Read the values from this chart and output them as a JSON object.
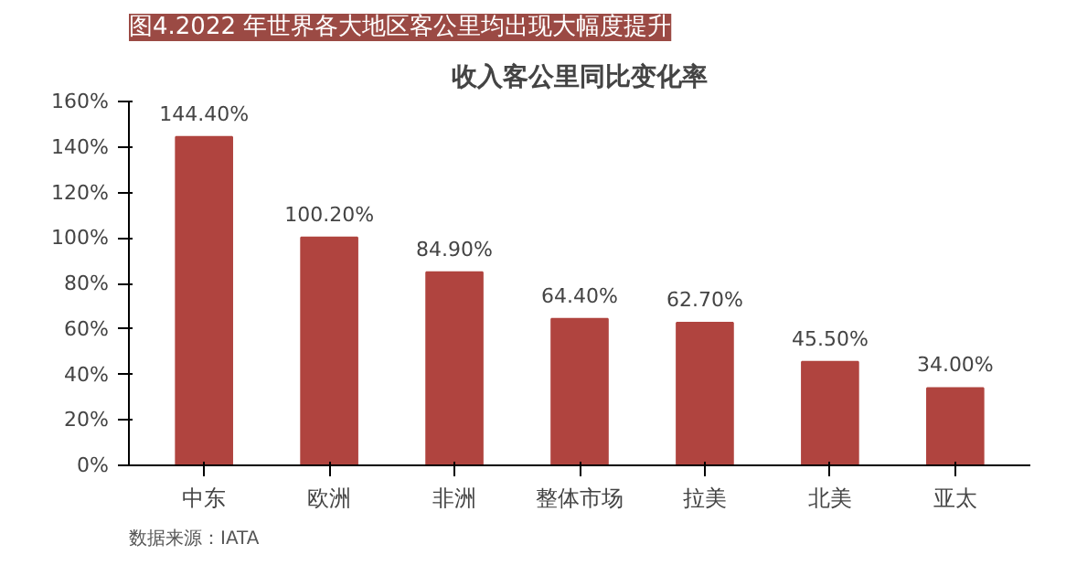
{
  "chart_data": {
    "type": "bar",
    "title": "图4.2022 年世界各大地区客公里均出现大幅度提升",
    "subtitle": "收入客公里同比变化率",
    "categories": [
      "中东",
      "欧洲",
      "非洲",
      "整体市场",
      "拉美",
      "北美",
      "亚太"
    ],
    "values": [
      144.4,
      100.2,
      84.9,
      64.4,
      62.7,
      45.5,
      34.0
    ],
    "value_labels": [
      "144.40%",
      "100.20%",
      "84.90%",
      "64.40%",
      "62.70%",
      "45.50%",
      "34.00%"
    ],
    "color": "#b0443f",
    "ylim": [
      0,
      160
    ],
    "yticks": [
      {
        "value": 0,
        "label": "0%"
      },
      {
        "value": 20,
        "label": "20%"
      },
      {
        "value": 40,
        "label": "40%"
      },
      {
        "value": 60,
        "label": "60%"
      },
      {
        "value": 80,
        "label": "80%"
      },
      {
        "value": 100,
        "label": "100%"
      },
      {
        "value": 120,
        "label": "120%"
      },
      {
        "value": 140,
        "label": "140%"
      },
      {
        "value": 160,
        "label": "160%"
      }
    ],
    "grid": false,
    "annotations": [
      "数据来源：IATA"
    ]
  }
}
